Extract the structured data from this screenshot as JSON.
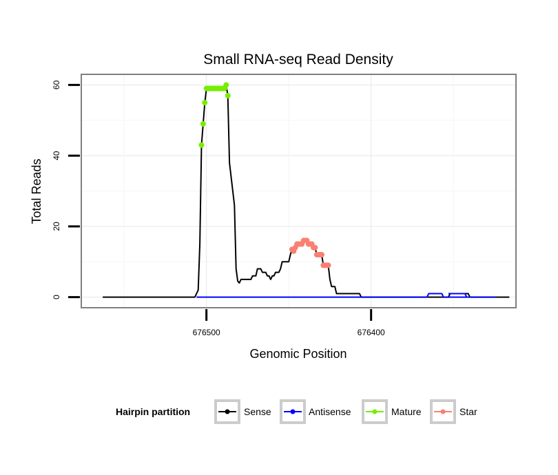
{
  "chart_data": {
    "type": "line",
    "title": "Small RNA-seq Read Density",
    "xlabel": "Genomic Position",
    "ylabel": "Total Reads",
    "x_reversed": true,
    "xlim": [
      676576,
      676312
    ],
    "ylim": [
      -3,
      63
    ],
    "x_ticks": [
      676500,
      676400
    ],
    "x_tick_labels": [
      "676500",
      "676400"
    ],
    "y_ticks": [
      0,
      20,
      40,
      60
    ],
    "y_tick_labels": [
      "0",
      "20",
      "40",
      "60"
    ],
    "grid": true,
    "legend_position": "bottom",
    "legend": {
      "title": "Hairpin partition",
      "entries": [
        "Sense",
        "Antisense",
        "Mature",
        "Star"
      ]
    },
    "series": [
      {
        "name": "Sense",
        "color": "#000000",
        "points": [
          [
            676563,
            0
          ],
          [
            676507,
            0
          ],
          [
            676506,
            1
          ],
          [
            676505,
            2
          ],
          [
            676504,
            15
          ],
          [
            676503,
            43
          ],
          [
            676502,
            49
          ],
          [
            676501,
            55
          ],
          [
            676500,
            59
          ],
          [
            676499,
            59
          ],
          [
            676494,
            59
          ],
          [
            676489,
            59
          ],
          [
            676488,
            60
          ],
          [
            676487,
            57
          ],
          [
            676486,
            38
          ],
          [
            676483,
            26
          ],
          [
            676482,
            8
          ],
          [
            676481,
            4.5
          ],
          [
            676480,
            4
          ],
          [
            676479,
            5
          ],
          [
            676473,
            5
          ],
          [
            676472,
            6
          ],
          [
            676470,
            6
          ],
          [
            676469,
            8
          ],
          [
            676467,
            8
          ],
          [
            676466,
            7
          ],
          [
            676464,
            7
          ],
          [
            676463,
            6
          ],
          [
            676462,
            6
          ],
          [
            676461,
            5
          ],
          [
            676460,
            6
          ],
          [
            676459,
            6
          ],
          [
            676458,
            7
          ],
          [
            676456,
            7
          ],
          [
            676455,
            8
          ],
          [
            676454,
            10
          ],
          [
            676450,
            10
          ],
          [
            676449,
            12
          ],
          [
            676448,
            13.5
          ],
          [
            676447,
            13
          ],
          [
            676446,
            14
          ],
          [
            676445,
            15
          ],
          [
            676442,
            15
          ],
          [
            676441,
            16
          ],
          [
            676439,
            16
          ],
          [
            676438,
            15
          ],
          [
            676436,
            15
          ],
          [
            676435,
            14
          ],
          [
            676434,
            14
          ],
          [
            676433,
            12
          ],
          [
            676430,
            12
          ],
          [
            676429,
            9
          ],
          [
            676426,
            9
          ],
          [
            676425,
            5
          ],
          [
            676424,
            3
          ],
          [
            676422,
            3
          ],
          [
            676421,
            1
          ],
          [
            676407,
            1
          ],
          [
            676406,
            0
          ],
          [
            676353,
            0
          ],
          [
            676352,
            1
          ],
          [
            676341,
            1
          ],
          [
            676340,
            0
          ],
          [
            676316,
            0
          ]
        ]
      },
      {
        "name": "Antisense",
        "color": "#0000ff",
        "points": [
          [
            676506,
            0
          ],
          [
            676401,
            0
          ],
          [
            676401,
            0
          ],
          [
            676366,
            0
          ],
          [
            676365,
            1
          ],
          [
            676357,
            1
          ],
          [
            676356,
            0
          ],
          [
            676325,
            0
          ],
          [
            676325,
            0
          ],
          [
            676342,
            0
          ],
          [
            676343,
            1
          ],
          [
            676353,
            1
          ]
        ]
      },
      {
        "name": "Mature",
        "color": "#76ee00",
        "points": [
          [
            676503,
            43
          ],
          [
            676502,
            49
          ],
          [
            676501,
            55
          ],
          [
            676500,
            59
          ],
          [
            676499,
            59
          ],
          [
            676498,
            59
          ],
          [
            676497,
            59
          ],
          [
            676496,
            59
          ],
          [
            676495,
            59
          ],
          [
            676494,
            59
          ],
          [
            676493,
            59
          ],
          [
            676492,
            59
          ],
          [
            676491,
            59
          ],
          [
            676490,
            59
          ],
          [
            676489,
            59
          ],
          [
            676488,
            60
          ],
          [
            676487,
            57
          ]
        ]
      },
      {
        "name": "Star",
        "color": "#fa8072",
        "points": [
          [
            676448,
            13.5
          ],
          [
            676447,
            13
          ],
          [
            676446,
            14
          ],
          [
            676445,
            15
          ],
          [
            676444,
            15
          ],
          [
            676443,
            15
          ],
          [
            676442,
            15
          ],
          [
            676441,
            16
          ],
          [
            676440,
            16
          ],
          [
            676439,
            16
          ],
          [
            676438,
            15
          ],
          [
            676437,
            15
          ],
          [
            676436,
            15
          ],
          [
            676435,
            14
          ],
          [
            676434,
            14
          ],
          [
            676433,
            12
          ],
          [
            676432,
            12
          ],
          [
            676431,
            12
          ],
          [
            676430,
            12
          ],
          [
            676429,
            9
          ],
          [
            676428,
            9
          ],
          [
            676427,
            9
          ],
          [
            676426,
            9
          ]
        ]
      }
    ]
  }
}
